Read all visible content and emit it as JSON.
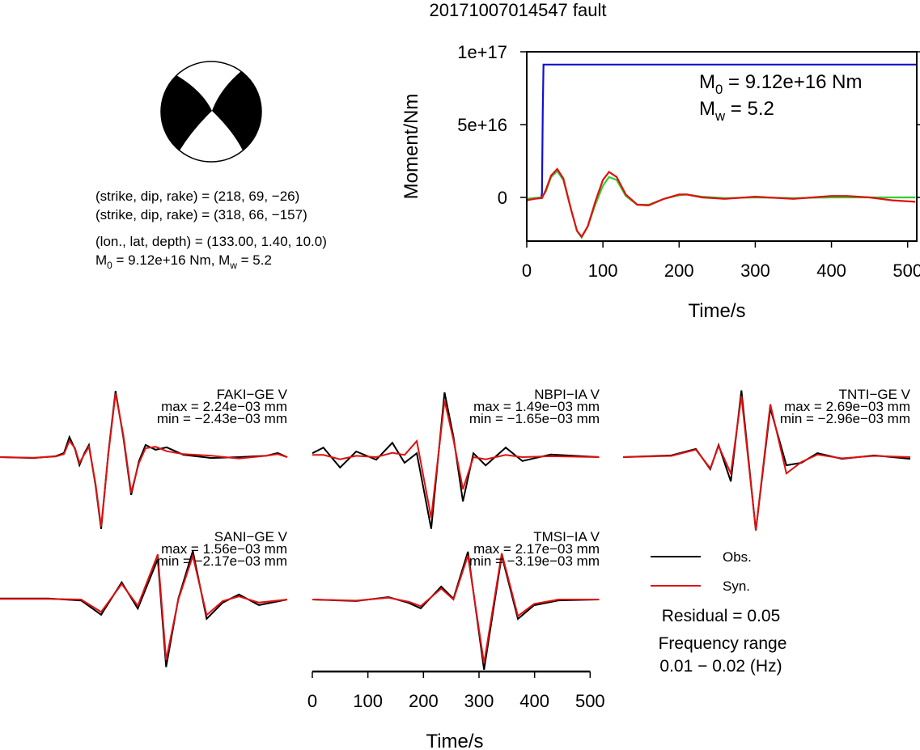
{
  "title": "20171007014547 fault",
  "mechanism": {
    "lines": [
      "(strike, dip, rake) = (218, 69, −26)",
      "(strike, dip, rake) = (318, 66, −157)",
      "(lon., lat, depth) = (133.00, 1.40, 10.0)"
    ],
    "moment_line": [
      "M",
      "0",
      " = 9.12e+16 Nm, M",
      "w",
      " = 5.2"
    ]
  },
  "legend": {
    "entries": [
      {
        "name": "Obs.",
        "color": "#000000"
      },
      {
        "name": "Syn.",
        "color": "#e01010"
      }
    ],
    "residual": "Residual = 0.05",
    "frequency": [
      "Frequency range",
      "0.01 − 0.02 (Hz)"
    ]
  },
  "chart_data": [
    {
      "type": "line",
      "xlabel": "Time/s",
      "ylabel": "Moment/Nm",
      "xlim": [
        0,
        512
      ],
      "xticks": [
        0,
        100,
        200,
        300,
        400,
        500
      ],
      "ylim": [
        -3e+16,
        1e+17
      ],
      "yticks": [
        0,
        {
          "value": 5e+16,
          "label": "5e+16"
        },
        {
          "value": 1e+17,
          "label": "1e+17"
        }
      ],
      "annotations": [
        [
          "M",
          "0",
          " = 9.12e+16 Nm"
        ],
        [
          "M",
          "w",
          " = 5.2"
        ]
      ],
      "series": [
        {
          "color": "#1010d0",
          "x": [
            0,
            19,
            20,
            21,
            22,
            512
          ],
          "values": [
            -1000000000000000.0,
            0,
            3000000000000000.0,
            6e+16,
            9.12e+16,
            9.12e+16
          ]
        },
        {
          "color": "#30d030",
          "x": [
            0,
            10,
            20,
            25,
            32,
            40,
            48,
            58,
            66,
            72,
            80,
            90,
            100,
            108,
            118,
            130,
            145,
            160,
            180,
            200,
            210,
            230,
            260,
            300,
            350,
            400,
            420,
            450,
            480,
            510
          ],
          "values": [
            -1000000000000000.0,
            -500000000000000.0,
            0,
            4000000000000000.0,
            1.4e+16,
            1.8e+16,
            1.2e+16,
            -8000000000000000.0,
            -2.3e+16,
            -2.75e+16,
            -2e+16,
            -5000000000000000.0,
            8000000000000000.0,
            1.4e+16,
            1.2e+16,
            1000000000000000.0,
            -5000000000000000.0,
            -5000000000000000.0,
            -1000000000000000.0,
            1500000000000000.0,
            2000000000000000.0,
            500000000000000.0,
            -500000000000000.0,
            0,
            -500000000000000.0,
            0,
            0,
            0,
            0,
            0
          ]
        },
        {
          "color": "#e01010",
          "x": [
            0,
            10,
            20,
            25,
            32,
            40,
            48,
            58,
            66,
            72,
            80,
            90,
            100,
            108,
            118,
            130,
            145,
            160,
            180,
            200,
            210,
            230,
            260,
            300,
            350,
            400,
            420,
            450,
            480,
            510
          ],
          "values": [
            -2000000000000000.0,
            -1000000000000000.0,
            -500000000000000.0,
            5000000000000000.0,
            1.5e+16,
            1.95e+16,
            1.3e+16,
            -8000000000000000.0,
            -2.3e+16,
            -2.7e+16,
            -2e+16,
            -3000000000000000.0,
            1.2e+16,
            1.75e+16,
            1.4e+16,
            2000000000000000.0,
            -5000000000000000.0,
            -5500000000000000.0,
            -1000000000000000.0,
            2000000000000000.0,
            2000000000000000.0,
            0,
            -1000000000000000.0,
            500000000000000.0,
            -1000000000000000.0,
            1000000000000000.0,
            1000000000000000.0,
            0,
            -2000000000000000.0,
            -3000000000000000.0
          ]
        }
      ]
    },
    {
      "type": "waveform",
      "station": "FAKI−GE V",
      "max_label": "max = 2.24e−03 mm",
      "min_label": "min = −2.43e−03 mm",
      "xlim": [
        0,
        517
      ],
      "ylim": [
        -0.0026,
        0.0026
      ],
      "x": [
        0,
        60,
        100,
        115,
        125,
        135,
        143,
        152,
        160,
        172,
        182,
        195,
        208,
        222,
        236,
        250,
        262,
        280,
        300,
        330,
        380,
        430,
        480,
        500,
        517
      ],
      "obs": [
        0,
        -3e-05,
        3e-05,
        0.00014,
        0.00068,
        0.00027,
        -0.00027,
        0.00014,
        0.00041,
        -0.00096,
        -0.00243,
        0.00014,
        0.00224,
        0.00068,
        -0.00128,
        -0.00014,
        0.00041,
        0.00025,
        0.00033,
        8e-05,
        -3e-05,
        0,
        5e-05,
        0.00014,
        0
      ],
      "syn": [
        0,
        -2e-05,
        2e-05,
        0.0001,
        0.00055,
        0.0003,
        -0.0002,
        0.0001,
        0.00035,
        -0.0009,
        -0.00235,
        0.0001,
        0.00215,
        0.00075,
        -0.0012,
        -0.0002,
        0.0003,
        0.00035,
        0.0002,
        0.0001,
        5e-05,
        -5e-05,
        5e-05,
        0.0001,
        0
      ]
    },
    {
      "type": "waveform",
      "station": "NBPI−IA V",
      "max_label": "max = 1.49e−03 mm",
      "min_label": "min = −1.65e−03 mm",
      "xlim": [
        0,
        517
      ],
      "ylim": [
        -0.00177,
        0.00177
      ],
      "x": [
        0,
        20,
        50,
        79,
        115,
        144,
        166,
        188,
        214,
        238,
        254,
        271,
        290,
        312,
        348,
        378,
        429,
        516
      ],
      "obs": [
        9e-05,
        0.00022,
        -0.00024,
        0.00013,
        -6e-05,
        0.00033,
        -0.00013,
        9e-05,
        -0.00165,
        0.00149,
        0.00047,
        -0.00102,
        9e-05,
        -0.00019,
        0.00022,
        -9e-05,
        6e-05,
        0
      ],
      "syn": [
        5e-05,
        5e-05,
        -5e-05,
        3e-05,
        0,
        0.0001,
        5e-05,
        0.00037,
        -0.0014,
        0.0013,
        0.0004,
        -0.00074,
        0,
        -5e-05,
        5e-05,
        0,
        2e-05,
        0
      ]
    },
    {
      "type": "waveform",
      "station": "TNTI−GE V",
      "max_label": "max = 2.69e−03 mm",
      "min_label": "min = −2.96e−03 mm",
      "xlim": [
        0,
        517
      ],
      "ylim": [
        -0.0031,
        0.0031
      ],
      "x": [
        0,
        87,
        131,
        157,
        172,
        194,
        213,
        239,
        265,
        294,
        321,
        350,
        394,
        452,
        517
      ],
      "obs": [
        0,
        7e-05,
        0.00033,
        -0.00049,
        0.00049,
        -0.00098,
        0.00269,
        -0.00296,
        0.00197,
        -0.00033,
        -0.00023,
        0.00016,
        -7e-05,
        7e-05,
        -7e-05
      ],
      "syn": [
        0,
        5e-05,
        0.0003,
        -0.00045,
        0.00045,
        -0.00066,
        0.00246,
        -0.00295,
        0.00213,
        -0.00066,
        -0.0002,
        0.0001,
        -5e-05,
        5e-05,
        0
      ]
    },
    {
      "type": "waveform",
      "station": "SANI−GE V",
      "max_label": "max = 1.56e−03 mm",
      "min_label": "min = −2.17e−03 mm",
      "xlim": [
        0,
        517
      ],
      "ylim": [
        -0.00247,
        0.00247
      ],
      "x": [
        0,
        87,
        146,
        182,
        219,
        248,
        284,
        299,
        321,
        347,
        372,
        401,
        430,
        466,
        517
      ],
      "obs": [
        3e-05,
        3e-05,
        -3e-05,
        -0.00049,
        0.00055,
        -0.00029,
        0.0013,
        -0.00217,
        3e-05,
        0.00156,
        -0.00062,
        -0.0001,
        0.00016,
        -0.00018,
        0
      ],
      "syn": [
        2e-05,
        2e-05,
        0,
        -0.0004,
        0.0005,
        -0.0002,
        0.00145,
        -0.00195,
        0,
        0.0014,
        -0.0005,
        -5e-05,
        0.0001,
        -0.0001,
        0
      ]
    },
    {
      "type": "waveform",
      "station": "TMSI−IA V",
      "max_label": "max = 2.17e−03 mm",
      "min_label": "min = −3.19e−03 mm",
      "xlim": [
        0,
        517
      ],
      "ylim": [
        -0.00349,
        0.00349
      ],
      "xticks": [
        0,
        100,
        200,
        300,
        400,
        500
      ],
      "xlabel": "Time/s",
      "x": [
        0,
        79,
        137,
        173,
        195,
        232,
        254,
        280,
        309,
        341,
        370,
        399,
        443,
        516
      ],
      "obs": [
        0,
        -7e-05,
        0.00011,
        -0.00015,
        -0.0004,
        0.00059,
        4e-05,
        0.00217,
        -0.00319,
        0.002,
        -0.00088,
        -0.00026,
        -4e-05,
        0
      ],
      "syn": [
        0,
        -5e-05,
        8e-05,
        -0.0001,
        -0.0003,
        0.0005,
        0,
        0.002,
        -0.0029,
        0.0021,
        -0.00075,
        -0.0002,
        0,
        0
      ]
    }
  ]
}
